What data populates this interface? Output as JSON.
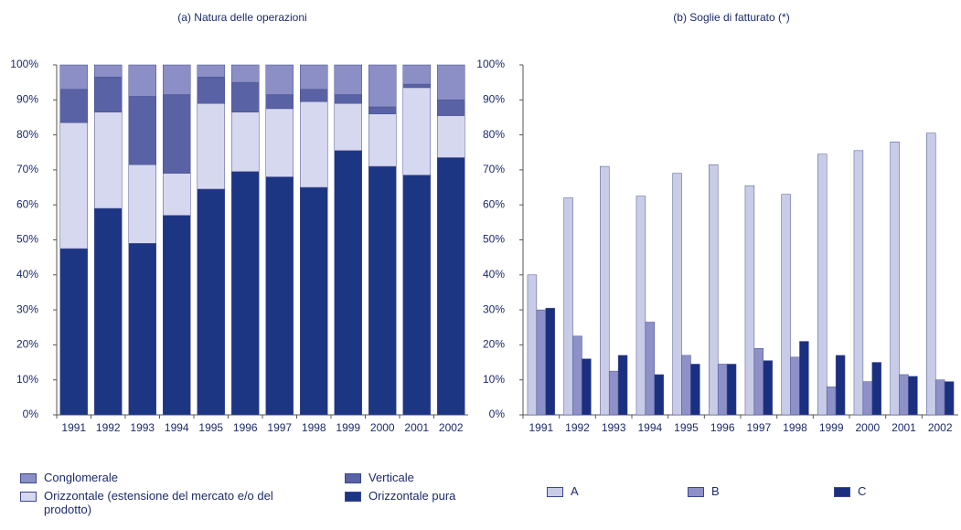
{
  "chart_data": [
    {
      "type": "bar",
      "stacked": true,
      "title": "(a) Natura delle operazioni",
      "categories": [
        "1991",
        "1992",
        "1993",
        "1994",
        "1995",
        "1996",
        "1997",
        "1998",
        "1999",
        "2000",
        "2001",
        "2002"
      ],
      "series": [
        {
          "name": "Conglomerale",
          "color": "#8b8fc6",
          "values": [
            7,
            3.5,
            9,
            8.5,
            3.5,
            5,
            8.5,
            7,
            8.5,
            12,
            5.5,
            10
          ]
        },
        {
          "name": "Verticale",
          "color": "#5a62a6",
          "values": [
            9.5,
            10,
            19.5,
            22.5,
            7.5,
            8.5,
            4,
            3.5,
            2.5,
            2,
            1,
            4.5
          ]
        },
        {
          "name": "Orizzontale (estensione del mercato e/o del prodotto)",
          "color": "#d6d8ef",
          "values": [
            36,
            27.5,
            22.5,
            12,
            24.5,
            17,
            19.5,
            24.5,
            13.5,
            15,
            25,
            12
          ]
        },
        {
          "name": "Orizzontale  pura",
          "color": "#1c3683",
          "values": [
            47.5,
            59,
            49,
            57,
            64.5,
            69.5,
            68,
            65,
            75.5,
            71,
            68.5,
            73.5
          ]
        }
      ],
      "ylim": [
        0,
        100
      ],
      "yticks": [
        {
          "value": 0,
          "label": "0%"
        },
        {
          "value": 10,
          "label": "10%"
        },
        {
          "value": 20,
          "label": "20%"
        },
        {
          "value": 30,
          "label": "30%"
        },
        {
          "value": 40,
          "label": "40%"
        },
        {
          "value": 50,
          "label": "50%"
        },
        {
          "value": 60,
          "label": "60%"
        },
        {
          "value": 70,
          "label": "70%"
        },
        {
          "value": 80,
          "label": "80%"
        },
        {
          "value": 90,
          "label": "90%"
        },
        {
          "value": 100,
          "label": "100%"
        }
      ]
    },
    {
      "type": "bar",
      "stacked": false,
      "title": "(b) Soglie di fatturato (*)",
      "categories": [
        "1991",
        "1992",
        "1993",
        "1994",
        "1995",
        "1996",
        "1997",
        "1998",
        "1999",
        "2000",
        "2001",
        "2002"
      ],
      "series": [
        {
          "name": "A",
          "color": "#c9cce7",
          "values": [
            40,
            62,
            71,
            62.5,
            69,
            71.5,
            65.5,
            63,
            74.5,
            75.5,
            78,
            80.5
          ]
        },
        {
          "name": "B",
          "color": "#8d91c7",
          "values": [
            30,
            22.5,
            12.5,
            26.5,
            17,
            14.5,
            19,
            16.5,
            8,
            9.5,
            11.5,
            10
          ]
        },
        {
          "name": "C",
          "color": "#1a2f80",
          "values": [
            30.5,
            16,
            17,
            11.5,
            14.5,
            14.5,
            15.5,
            21,
            17,
            15,
            11,
            9.5
          ]
        }
      ],
      "ylim": [
        0,
        100
      ],
      "yticks": [
        {
          "value": 0,
          "label": "0%"
        },
        {
          "value": 10,
          "label": "10%"
        },
        {
          "value": 20,
          "label": "20%"
        },
        {
          "value": 30,
          "label": "30%"
        },
        {
          "value": 40,
          "label": "40%"
        },
        {
          "value": 50,
          "label": "50%"
        },
        {
          "value": 60,
          "label": "60%"
        },
        {
          "value": 70,
          "label": "70%"
        },
        {
          "value": 80,
          "label": "80%"
        },
        {
          "value": 90,
          "label": "90%"
        },
        {
          "value": 100,
          "label": "100%"
        }
      ]
    }
  ]
}
